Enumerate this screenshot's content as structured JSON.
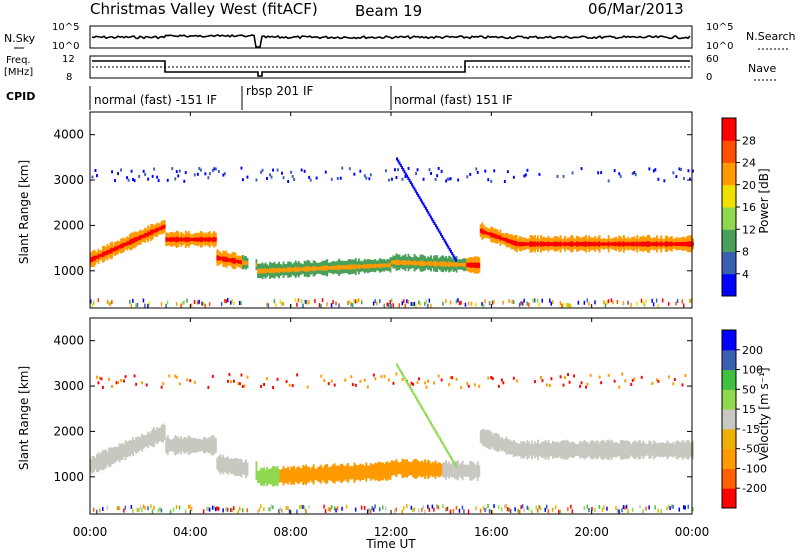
{
  "header": {
    "title": "Christmas Valley West (fitACF)",
    "beam": "Beam 19",
    "date": "06/Mar/2013"
  },
  "top_panels": {
    "nsky_label": "N.Sky",
    "nsearch_label": "N.Search",
    "freq_label_line1": "Freq.",
    "freq_label_line2": "[MHz]",
    "nave_label": "Nave",
    "cpid_label": "CPID",
    "nsky_ticks": [
      "10^5",
      "10^0"
    ],
    "nsearch_ticks": [
      "10^5",
      "10^0"
    ],
    "freq_ticks": [
      "12",
      "8"
    ],
    "nave_ticks": [
      "60",
      "0"
    ]
  },
  "cpid_segments": [
    {
      "label": "normal (fast) -151 IF",
      "start_h": 0,
      "end_h": 6
    },
    {
      "label": "rbsp 201 IF",
      "start_h": 6,
      "end_h": 12
    },
    {
      "label": "normal (fast) 151 IF",
      "start_h": 12,
      "end_h": 24
    }
  ],
  "x_axis": {
    "label": "Time UT",
    "range_h": [
      0,
      24
    ],
    "ticks": [
      "00:00",
      "04:00",
      "08:00",
      "12:00",
      "16:00",
      "20:00",
      "00:00"
    ],
    "tick_hours": [
      0,
      4,
      8,
      12,
      16,
      20,
      24
    ]
  },
  "chart_data": [
    {
      "type": "heatmap",
      "name": "power",
      "ylabel": "Slant Range [km]",
      "yticks": [
        "1000",
        "2000",
        "3000",
        "4000"
      ],
      "ytick_values": [
        1000,
        2000,
        3000,
        4000
      ],
      "ylim": [
        180,
        4500
      ],
      "colorbar_label": "Power [dB]",
      "colorbar_ticks": [
        "28",
        "24",
        "20",
        "16",
        "12",
        "8",
        "4"
      ],
      "colorbar_range": [
        0,
        30
      ],
      "colors": [
        "#0000ff",
        "#3a5fb4",
        "#4aa05a",
        "#90d850",
        "#f0e000",
        "#ff9a00",
        "#ff5000",
        "#ff0000"
      ]
    },
    {
      "type": "heatmap",
      "name": "velocity",
      "ylabel": "Slant Range [km]",
      "yticks": [
        "1000",
        "2000",
        "3000",
        "4000"
      ],
      "ytick_values": [
        1000,
        2000,
        3000,
        4000
      ],
      "ylim": [
        180,
        4500
      ],
      "colorbar_label": "Velocity [m s⁻¹]",
      "colorbar_ticks": [
        "200",
        "100",
        "50",
        "15",
        "-15",
        "-50",
        "-100",
        "-200"
      ],
      "colorbar_range": [
        -250,
        250
      ],
      "colors": [
        "#ff0000",
        "#ff6000",
        "#ff9a00",
        "#f0b000",
        "#c8c8c0",
        "#90d850",
        "#40c040",
        "#3a5fb4",
        "#0000ff"
      ]
    }
  ]
}
